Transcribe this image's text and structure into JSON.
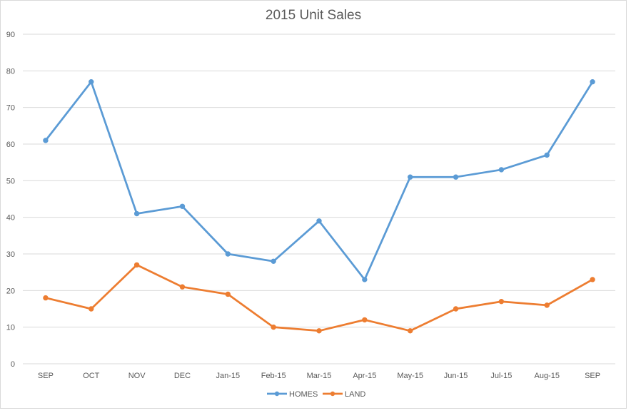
{
  "chart_data": {
    "type": "line",
    "title": "2015 Unit Sales",
    "xlabel": "",
    "ylabel": "",
    "categories": [
      "SEP",
      "OCT",
      "NOV",
      "DEC",
      "Jan-15",
      "Feb-15",
      "Mar-15",
      "Apr-15",
      "May-15",
      "Jun-15",
      "Jul-15",
      "Aug-15",
      "SEP"
    ],
    "ylim": [
      0,
      90
    ],
    "yticks": [
      0,
      10,
      20,
      30,
      40,
      50,
      60,
      70,
      80,
      90
    ],
    "grid": true,
    "legend_position": "bottom",
    "series": [
      {
        "name": "HOMES",
        "color": "#5b9bd5",
        "values": [
          61,
          77,
          41,
          43,
          30,
          28,
          39,
          23,
          51,
          51,
          53,
          57,
          77
        ]
      },
      {
        "name": "LAND",
        "color": "#ed7d31",
        "values": [
          18,
          15,
          27,
          21,
          19,
          10,
          9,
          12,
          9,
          15,
          17,
          16,
          23
        ]
      }
    ]
  }
}
